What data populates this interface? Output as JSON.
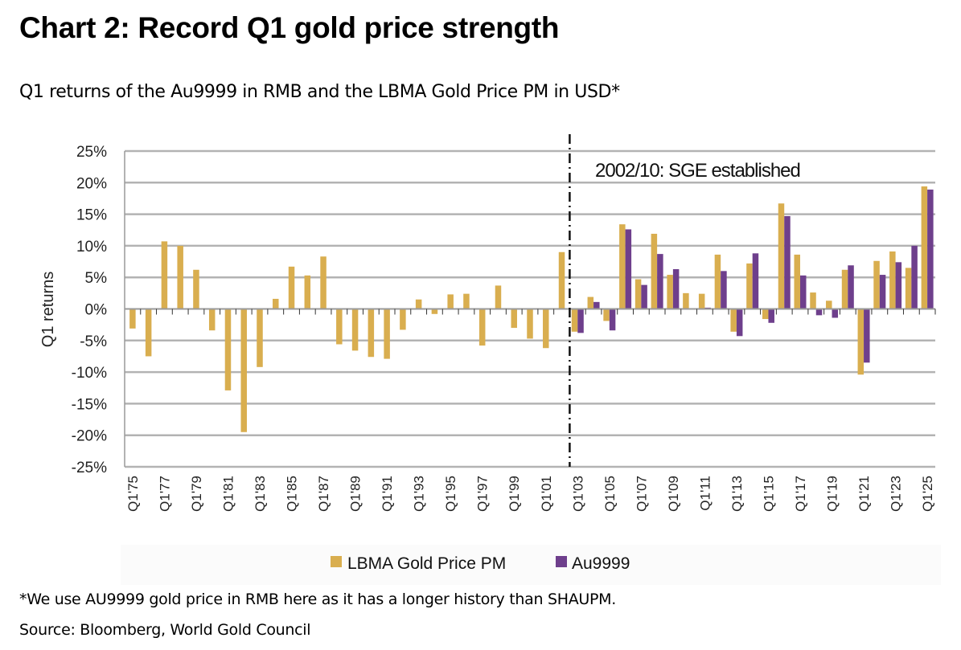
{
  "header": {
    "title": "Chart 2: Record Q1 gold price strength",
    "subtitle": "Q1 returns of the Au9999 in RMB and the LBMA Gold Price PM in USD*"
  },
  "footer": {
    "footnote": "*We use AU9999 gold price in RMB here as it has a longer history than SHAUPM.",
    "source": "Source: Bloomberg, World Gold Council"
  },
  "chart_data": {
    "type": "bar",
    "title": "Chart 2: Record Q1 gold price strength",
    "subtitle": "Q1 returns of the Au9999 in RMB and the LBMA Gold Price PM in USD*",
    "xlabel": "",
    "ylabel": "Q1 returns",
    "ylim": [
      -25,
      25
    ],
    "yticks": [
      25,
      20,
      15,
      10,
      5,
      0,
      -5,
      -10,
      -15,
      -20,
      -25
    ],
    "ytick_labels": [
      "25%",
      "20%",
      "15%",
      "10%",
      "5%",
      "0%",
      "-5%",
      "-10%",
      "-15%",
      "-20%",
      "-25%"
    ],
    "grid": true,
    "legend_position": "bottom",
    "colors": {
      "LBMA Gold Price PM": "#D9AE4F",
      "Au9999": "#6E3F8C"
    },
    "categories": [
      "Q1'75",
      "Q1'76",
      "Q1'77",
      "Q1'78",
      "Q1'79",
      "Q1'80",
      "Q1'81",
      "Q1'82",
      "Q1'83",
      "Q1'84",
      "Q1'85",
      "Q1'86",
      "Q1'87",
      "Q1'88",
      "Q1'89",
      "Q1'90",
      "Q1'91",
      "Q1'92",
      "Q1'93",
      "Q1'94",
      "Q1'95",
      "Q1'96",
      "Q1'97",
      "Q1'98",
      "Q1'99",
      "Q1'00",
      "Q1'01",
      "Q1'02",
      "Q1'03",
      "Q1'04",
      "Q1'05",
      "Q1'06",
      "Q1'07",
      "Q1'08",
      "Q1'09",
      "Q1'10",
      "Q1'11",
      "Q1'12",
      "Q1'13",
      "Q1'14",
      "Q1'15",
      "Q1'16",
      "Q1'17",
      "Q1'18",
      "Q1'19",
      "Q1'20",
      "Q1'21",
      "Q1'22",
      "Q1'23",
      "Q1'24",
      "Q1'25"
    ],
    "x_tick_labels": [
      "Q1'75",
      "Q1'77",
      "Q1'79",
      "Q1'81",
      "Q1'83",
      "Q1'85",
      "Q1'87",
      "Q1'89",
      "Q1'91",
      "Q1'93",
      "Q1'95",
      "Q1'97",
      "Q1'99",
      "Q1'01",
      "Q1'03",
      "Q1'05",
      "Q1'07",
      "Q1'09",
      "Q1'11",
      "Q1'13",
      "Q1'15",
      "Q1'17",
      "Q1'19",
      "Q1'21",
      "Q1'23",
      "Q1'25"
    ],
    "series": [
      {
        "name": "LBMA Gold Price PM",
        "values": [
          -3.1,
          -7.5,
          10.7,
          10.0,
          6.2,
          -3.4,
          -12.9,
          -19.5,
          -9.2,
          1.6,
          6.7,
          5.3,
          8.3,
          -5.6,
          -6.6,
          -7.6,
          -7.9,
          -3.3,
          1.5,
          -0.8,
          2.3,
          2.4,
          -5.8,
          3.7,
          -3.0,
          -4.7,
          -6.2,
          9.0,
          -3.6,
          1.9,
          -1.9,
          13.4,
          4.7,
          11.9,
          5.4,
          2.5,
          2.4,
          8.6,
          -3.6,
          7.2,
          -1.6,
          16.7,
          8.6,
          2.6,
          1.3,
          6.2,
          -10.4,
          7.6,
          9.1,
          6.5,
          19.4
        ]
      },
      {
        "name": "Au9999",
        "values": [
          null,
          null,
          null,
          null,
          null,
          null,
          null,
          null,
          null,
          null,
          null,
          null,
          null,
          null,
          null,
          null,
          null,
          null,
          null,
          null,
          null,
          null,
          null,
          null,
          null,
          null,
          null,
          null,
          -3.8,
          1.1,
          -3.4,
          12.6,
          3.8,
          8.7,
          6.3,
          0.05,
          0.2,
          6.0,
          -4.3,
          8.8,
          -2.2,
          14.7,
          5.3,
          -1.0,
          -1.4,
          6.9,
          -8.5,
          5.4,
          7.4,
          10.0,
          18.9
        ]
      }
    ],
    "annotations": [
      {
        "text": "2002/10: SGE established",
        "at_category_between": [
          "Q1'02",
          "Q1'03"
        ],
        "style": "dash-dot vertical line"
      }
    ]
  }
}
